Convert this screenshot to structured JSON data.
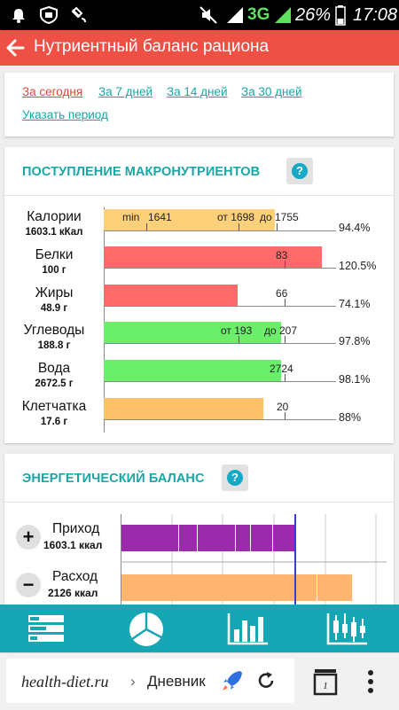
{
  "status_bar": {
    "network": "3G",
    "battery": "26%",
    "time": "17:08"
  },
  "app_bar": {
    "title": "Нутриентный баланс рациона"
  },
  "period": {
    "links": [
      "За сегодня",
      "За 7 дней",
      "За 14 дней",
      "За 30 дней"
    ],
    "custom": "Указать период",
    "active_index": 0
  },
  "macros": {
    "title": "ПОСТУПЛЕНИЕ МАКРОНУТРИЕНТОВ",
    "help": "?",
    "colors": {
      "low": "#ffd07a",
      "over": "#ff6b6b",
      "ok": "#6bef6b"
    },
    "rows": [
      {
        "name": "Калории",
        "value": "1603.1 кКал",
        "percent": "94.4%",
        "labels": [
          "min",
          "1641",
          "от 1698",
          "до 1755"
        ],
        "fill_pct": 94.4,
        "color": "#ffd07a"
      },
      {
        "name": "Белки",
        "value": "100 г",
        "percent": "120.5%",
        "labels": [
          "83"
        ],
        "fill_pct": 120.5,
        "color": "#ff6b6b"
      },
      {
        "name": "Жиры",
        "value": "48.9 г",
        "percent": "74.1%",
        "labels": [
          "66"
        ],
        "fill_pct": 74.1,
        "color": "#ff6b6b"
      },
      {
        "name": "Углеводы",
        "value": "188.8 г",
        "percent": "97.8%",
        "labels": [
          "от 193",
          "до 207"
        ],
        "fill_pct": 97.8,
        "color": "#6bef6b"
      },
      {
        "name": "Вода",
        "value": "2672.5 г",
        "percent": "98.1%",
        "labels": [
          "2724"
        ],
        "fill_pct": 98.1,
        "color": "#6bef6b"
      },
      {
        "name": "Клетчатка",
        "value": "17.6 г",
        "percent": "88%",
        "labels": [
          "20"
        ],
        "fill_pct": 88,
        "color": "#ffc06a"
      }
    ]
  },
  "energy": {
    "title": "ЭНЕРГЕТИЧЕСКИЙ БАЛАНС",
    "help": "?",
    "income": {
      "name": "Приход",
      "value": "1603.1 ккал",
      "kcal": 1603.1,
      "color": "#9b2bab",
      "sign": "+"
    },
    "expense": {
      "name": "Расход",
      "value": "2126 ккал",
      "kcal": 2126,
      "color": "#ffb570",
      "sign": "−"
    }
  },
  "bottom_nav": {
    "items": [
      "list-icon",
      "pie-chart-icon",
      "bar-chart-icon",
      "candlestick-chart-icon"
    ]
  },
  "browser": {
    "domain": "health-diet.ru",
    "separator": "›",
    "page": "Дневник"
  }
}
